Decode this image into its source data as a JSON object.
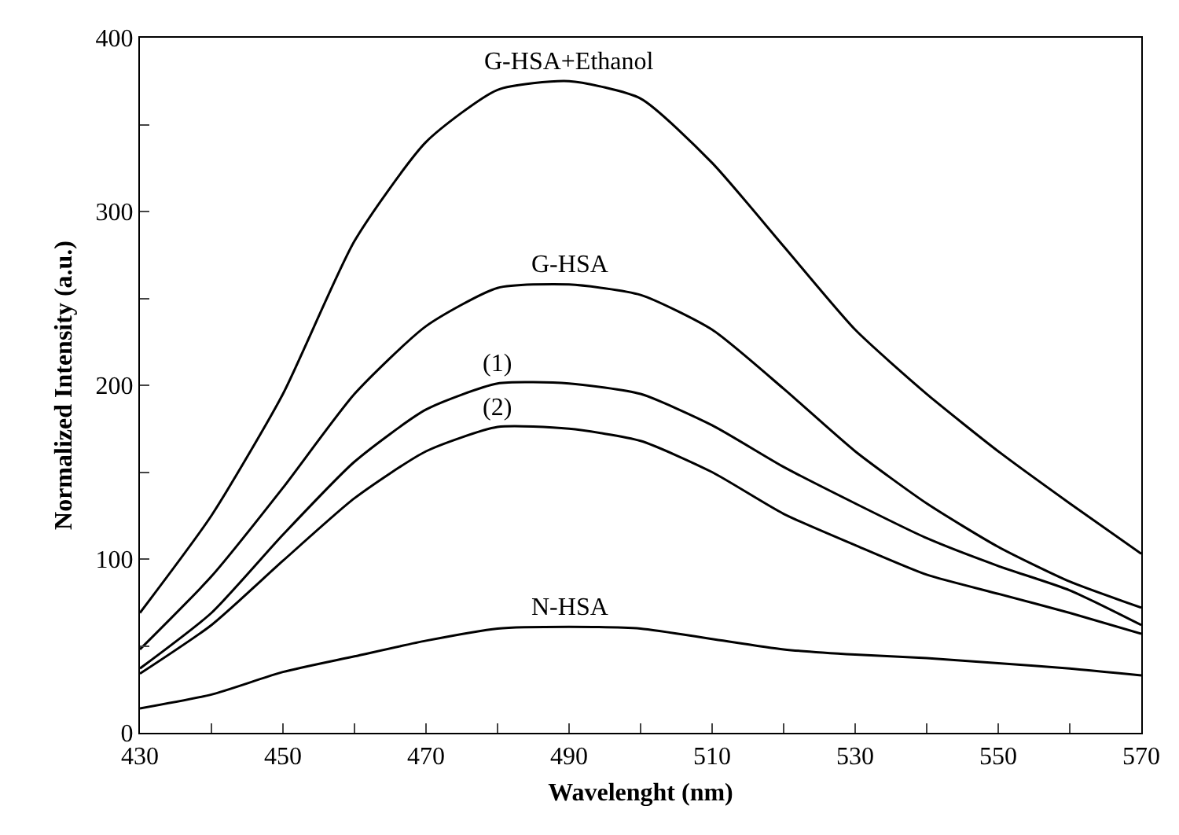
{
  "chart_data": {
    "type": "line",
    "xlabel": "Wavelenght (nm)",
    "ylabel": "Normalized Intensity (a.u.)",
    "xlim": [
      430,
      570
    ],
    "ylim": [
      0,
      400
    ],
    "xticks": [
      430,
      {
        "value": 440,
        "label": null
      },
      450,
      {
        "value": 460,
        "label": null
      },
      470,
      {
        "value": 480,
        "label": null
      },
      490,
      {
        "value": 500,
        "label": null
      },
      510,
      {
        "value": 520,
        "label": null
      },
      530,
      {
        "value": 540,
        "label": null
      },
      550,
      {
        "value": 560,
        "label": null
      },
      570
    ],
    "yticks": [
      0,
      {
        "value": 50,
        "label": null
      },
      100,
      {
        "value": 150,
        "label": null
      },
      200,
      {
        "value": 250,
        "label": null
      },
      300,
      {
        "value": 350,
        "label": null
      },
      400
    ],
    "grid": false,
    "legend": false,
    "marker": "none",
    "line_style": "solid",
    "x": [
      430,
      440,
      450,
      460,
      470,
      480,
      490,
      500,
      510,
      520,
      530,
      540,
      550,
      560,
      570
    ],
    "series": [
      {
        "name": "G-HSA+Ethanol",
        "color": "#000000",
        "values": [
          69,
          125,
          195,
          283,
          340,
          370,
          375,
          365,
          328,
          280,
          232,
          195,
          162,
          132,
          103
        ]
      },
      {
        "name": "G-HSA",
        "color": "#000000",
        "values": [
          48,
          90,
          141,
          195,
          234,
          256,
          258,
          252,
          232,
          198,
          162,
          132,
          107,
          87,
          72
        ]
      },
      {
        "name": "(1)",
        "color": "#000000",
        "values": [
          37,
          69,
          114,
          156,
          186,
          201,
          201,
          195,
          177,
          153,
          132,
          112,
          96,
          82,
          62
        ]
      },
      {
        "name": "(2)",
        "color": "#000000",
        "values": [
          34,
          62,
          99,
          135,
          162,
          176,
          175,
          168,
          150,
          126,
          108,
          91,
          80,
          69,
          57
        ]
      },
      {
        "name": "N-HSA",
        "color": "#000000",
        "values": [
          14,
          22,
          35,
          44,
          53,
          60,
          61,
          60,
          54,
          48,
          45,
          43,
          40,
          37,
          33
        ]
      }
    ]
  }
}
